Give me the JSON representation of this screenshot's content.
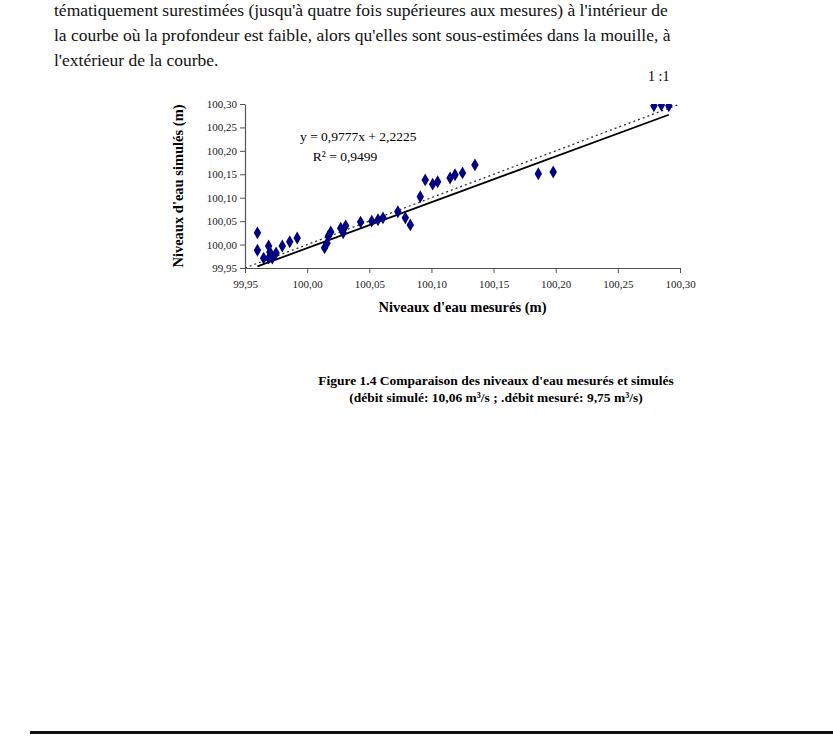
{
  "text": {
    "paragraph": [
      "tématiquement surestimées (jusqu'à quatre fois supérieures aux mesures) à l'intérieur de",
      "la courbe où la profondeur est faible, alors qu'elles sont sous-estimées dans la mouille, à",
      "l'extérieur de la courbe."
    ]
  },
  "chart_data": {
    "type": "scatter",
    "title": "Figure 1.4 Comparaison des niveaux d'eau mesurés et simulés",
    "subtitle": "(débit simulé: 10,06 m³/s ; .débit mesuré: 9,75 m³/s)",
    "x_label": "Niveaux d'eau mesurés (m)",
    "y_label": "Niveaux d'eau simulés (m)",
    "x": [
      99.96,
      99.96,
      99.965,
      99.969,
      99.97,
      99.972,
      99.975,
      99.969,
      99.98,
      99.986,
      99.992,
      100.014,
      100.016,
      100.017,
      100.019,
      100.027,
      100.029,
      100.031,
      100.043,
      100.052,
      100.057,
      100.061,
      100.073,
      100.079,
      100.083,
      100.091,
      100.095,
      100.101,
      100.105,
      100.115,
      100.119,
      100.125,
      100.135,
      100.186,
      100.198,
      100.279,
      100.285,
      100.291
    ],
    "values": [
      100.025,
      99.988,
      99.971,
      99.971,
      99.984,
      99.971,
      99.982,
      99.997,
      99.997,
      100.006,
      100.014,
      99.993,
      100.003,
      100.018,
      100.027,
      100.035,
      100.025,
      100.04,
      100.048,
      100.05,
      100.053,
      100.057,
      100.07,
      100.057,
      100.042,
      100.102,
      100.138,
      100.129,
      100.134,
      100.142,
      100.149,
      100.153,
      100.17,
      100.151,
      100.155,
      100.296,
      100.298,
      100.296
    ],
    "color": "#000080",
    "marker": "diamond",
    "grid": false,
    "xlim": [
      99.95,
      100.3
    ],
    "xticks": [
      {
        "value": 99.95,
        "label": "99,95"
      },
      {
        "value": 100.0,
        "label": "100,00"
      },
      {
        "value": 100.05,
        "label": "100,05"
      },
      {
        "value": 100.1,
        "label": "100,10"
      },
      {
        "value": 100.15,
        "label": "100,15"
      },
      {
        "value": 100.2,
        "label": "100,20"
      },
      {
        "value": 100.25,
        "label": "100,25"
      },
      {
        "value": 100.3,
        "label": "100,30"
      }
    ],
    "ylim": [
      99.95,
      100.3
    ],
    "yticks": [
      {
        "value": 99.95,
        "label": "99,95"
      },
      {
        "value": 100.0,
        "label": "100,00"
      },
      {
        "value": 100.05,
        "label": "100,05"
      },
      {
        "value": 100.1,
        "label": "100,10"
      },
      {
        "value": 100.15,
        "label": "100,15"
      },
      {
        "value": 100.2,
        "label": "100,20"
      },
      {
        "value": 100.25,
        "label": "100,25"
      },
      {
        "value": 100.3,
        "label": "100,30"
      }
    ],
    "trendline": {
      "slope": 0.9777,
      "intercept": 2.2225,
      "equation": "y = 0,9777x + 2,2225",
      "r2": 0.9499,
      "r2_label": "R² = 0,9499"
    },
    "reference_line": {
      "label": "1 :1",
      "line_style": "dotted"
    }
  }
}
